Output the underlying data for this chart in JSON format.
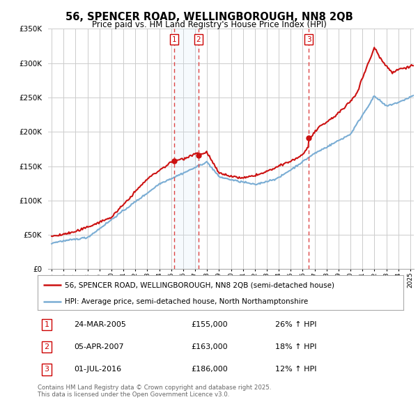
{
  "title": "56, SPENCER ROAD, WELLINGBOROUGH, NN8 2QB",
  "subtitle": "Price paid vs. HM Land Registry's House Price Index (HPI)",
  "legend_line1": "56, SPENCER ROAD, WELLINGBOROUGH, NN8 2QB (semi-detached house)",
  "legend_line2": "HPI: Average price, semi-detached house, North Northamptonshire",
  "transactions": [
    {
      "num": 1,
      "date": "24-MAR-2005",
      "price": 155000,
      "hpi_pct": "26%",
      "x_year": 2005.23
    },
    {
      "num": 2,
      "date": "05-APR-2007",
      "price": 163000,
      "hpi_pct": "18%",
      "x_year": 2007.27
    },
    {
      "num": 3,
      "date": "01-JUL-2016",
      "price": 186000,
      "hpi_pct": "12%",
      "x_year": 2016.5
    }
  ],
  "footnote1": "Contains HM Land Registry data © Crown copyright and database right 2025.",
  "footnote2": "This data is licensed under the Open Government Licence v3.0.",
  "hpi_color": "#7aadd4",
  "hpi_fill_color": "#d0e4f5",
  "price_color": "#cc1111",
  "dashed_color": "#dd4444",
  "background_color": "#ffffff",
  "grid_color": "#cccccc",
  "ylim": [
    0,
    350000
  ],
  "yticks": [
    0,
    50000,
    100000,
    150000,
    200000,
    250000,
    300000,
    350000
  ],
  "xlim_start": 1994.7,
  "xlim_end": 2025.3
}
